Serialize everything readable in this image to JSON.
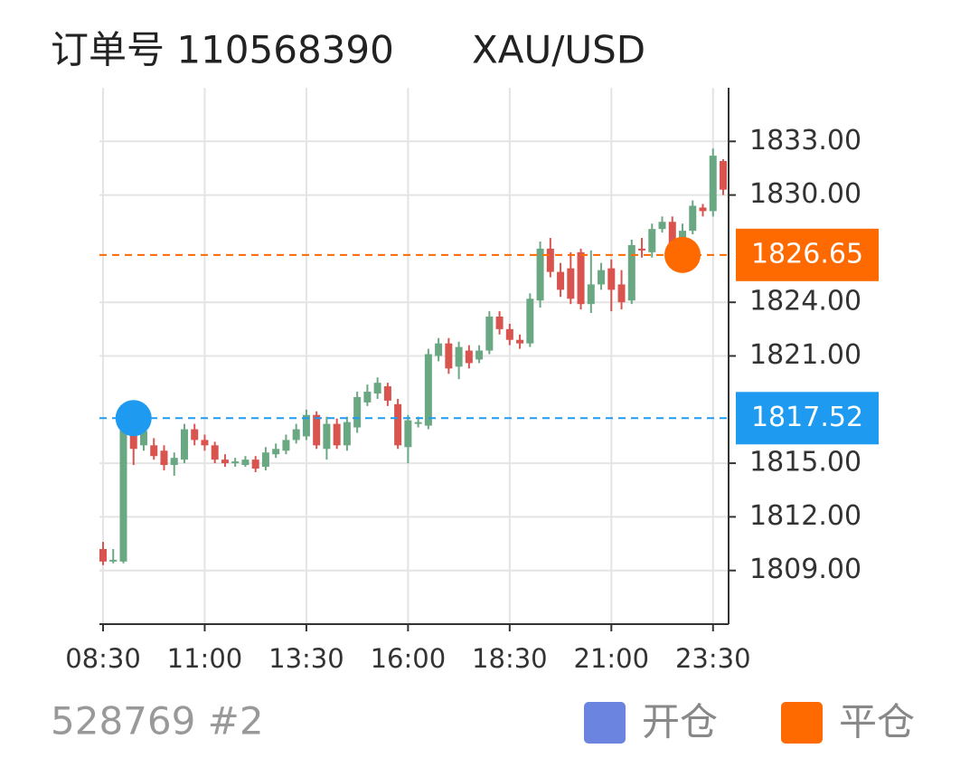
{
  "chart_data": {
    "type": "candlestick",
    "title": "订单号 110568390",
    "symbol": "XAU/USD",
    "footer": "528769 #2",
    "x": [
      "08:30",
      "08:45",
      "09:00",
      "09:15",
      "09:30",
      "09:45",
      "10:00",
      "10:15",
      "10:30",
      "10:45",
      "11:00",
      "11:15",
      "11:30",
      "11:45",
      "12:00",
      "12:15",
      "12:30",
      "12:45",
      "13:00",
      "13:15",
      "13:30",
      "13:45",
      "14:00",
      "14:15",
      "14:30",
      "14:45",
      "15:00",
      "15:15",
      "15:30",
      "15:45",
      "16:00",
      "16:15",
      "16:30",
      "16:45",
      "17:00",
      "17:15",
      "17:30",
      "17:45",
      "18:00",
      "18:15",
      "18:30",
      "18:45",
      "19:00",
      "19:15",
      "19:30",
      "19:45",
      "20:00",
      "20:15",
      "20:30",
      "20:45",
      "21:00",
      "21:15",
      "21:30",
      "21:45",
      "22:00",
      "22:15",
      "22:30",
      "22:45",
      "23:00",
      "23:15",
      "23:30",
      "23:45"
    ],
    "open": [
      1810.2,
      1809.5,
      1809.5,
      1817.0,
      1816.0,
      1816.0,
      1815.7,
      1814.9,
      1815.2,
      1816.9,
      1816.3,
      1816.0,
      1815.2,
      1815.0,
      1814.9,
      1815.2,
      1814.8,
      1815.5,
      1815.7,
      1816.3,
      1816.5,
      1817.7,
      1815.8,
      1817.2,
      1816.0,
      1817.0,
      1818.4,
      1818.9,
      1819.3,
      1818.3,
      1815.9,
      1817.2,
      1817.1,
      1821.0,
      1821.7,
      1820.4,
      1821.3,
      1820.8,
      1821.3,
      1823.2,
      1822.5,
      1821.9,
      1821.7,
      1824.1,
      1827.0,
      1825.7,
      1825.9,
      1826.8,
      1823.9,
      1825.0,
      1825.9,
      1825.0,
      1824.1,
      1827.0,
      1826.8,
      1828.1,
      1828.5,
      1827.5,
      1828.0,
      1829.3,
      1829.1,
      1831.9
    ],
    "close": [
      1809.5,
      1809.6,
      1817.0,
      1815.8,
      1816.8,
      1815.4,
      1814.9,
      1815.3,
      1816.9,
      1816.3,
      1816.0,
      1815.2,
      1815.0,
      1815.1,
      1815.2,
      1814.7,
      1815.6,
      1815.8,
      1816.3,
      1816.9,
      1817.7,
      1816.0,
      1817.2,
      1816.0,
      1817.3,
      1818.7,
      1819.0,
      1819.5,
      1818.5,
      1816.0,
      1817.4,
      1817.3,
      1821.1,
      1821.7,
      1820.3,
      1821.5,
      1820.6,
      1821.3,
      1823.2,
      1822.5,
      1821.9,
      1821.7,
      1824.2,
      1827.0,
      1825.7,
      1824.7,
      1824.2,
      1823.9,
      1825.0,
      1825.8,
      1824.7,
      1824.0,
      1827.2,
      1826.9,
      1828.1,
      1828.5,
      1827.3,
      1828.0,
      1829.4,
      1829.1,
      1832.2,
      1830.3
    ],
    "high": [
      1810.6,
      1810.2,
      1817.6,
      1817.4,
      1817.4,
      1816.4,
      1816.0,
      1815.6,
      1817.2,
      1817.2,
      1816.6,
      1816.2,
      1815.5,
      1815.3,
      1815.4,
      1815.4,
      1815.9,
      1816.1,
      1816.6,
      1817.2,
      1818.0,
      1817.9,
      1817.6,
      1817.5,
      1817.6,
      1819.0,
      1819.4,
      1819.8,
      1819.5,
      1818.6,
      1817.7,
      1817.6,
      1821.4,
      1822.0,
      1822.0,
      1821.8,
      1821.6,
      1821.6,
      1823.5,
      1823.5,
      1822.8,
      1822.2,
      1824.5,
      1827.4,
      1827.6,
      1826.2,
      1826.8,
      1827.0,
      1826.9,
      1826.2,
      1826.4,
      1825.8,
      1827.5,
      1827.6,
      1828.4,
      1828.8,
      1828.8,
      1828.4,
      1829.7,
      1829.5,
      1832.6,
      1832.0
    ],
    "low": [
      1809.3,
      1809.4,
      1809.4,
      1814.9,
      1815.7,
      1815.2,
      1814.6,
      1814.3,
      1815.0,
      1816.0,
      1815.7,
      1815.0,
      1814.8,
      1814.8,
      1814.8,
      1814.5,
      1814.6,
      1815.3,
      1815.5,
      1816.1,
      1816.3,
      1815.8,
      1815.2,
      1815.8,
      1815.7,
      1816.7,
      1818.2,
      1818.6,
      1818.2,
      1815.8,
      1815.0,
      1817.0,
      1816.9,
      1820.7,
      1820.0,
      1819.7,
      1820.3,
      1820.6,
      1821.1,
      1822.2,
      1821.6,
      1821.4,
      1821.5,
      1823.7,
      1825.4,
      1824.3,
      1823.9,
      1823.6,
      1823.4,
      1824.7,
      1823.5,
      1823.6,
      1823.9,
      1826.5,
      1826.5,
      1827.9,
      1827.0,
      1827.2,
      1827.8,
      1828.8,
      1828.8,
      1830.0
    ],
    "up_color": "#6aa883",
    "down_color": "#d9534f",
    "ylim": [
      1806,
      1836
    ],
    "yticks": [
      {
        "value": 1809,
        "label": "1809.00"
      },
      {
        "value": 1812,
        "label": "1812.00"
      },
      {
        "value": 1815,
        "label": "1815.00"
      },
      {
        "value": 1821,
        "label": "1821.00"
      },
      {
        "value": 1824,
        "label": "1824.00"
      },
      {
        "value": 1830,
        "label": "1830.00"
      },
      {
        "value": 1833,
        "label": "1833.00"
      }
    ],
    "xticks": [
      "08:30",
      "11:00",
      "13:30",
      "16:00",
      "18:30",
      "21:00",
      "23:30"
    ],
    "grid": true,
    "levels": [
      {
        "name": "开仓",
        "time": "09:15",
        "price": 1817.52,
        "color": "#1e9bf0",
        "legend_color": "#6a84e0"
      },
      {
        "name": "平仓",
        "time": "22:45",
        "price": 1826.65,
        "color": "#ff6a00",
        "legend_color": "#ff6a00"
      }
    ]
  }
}
